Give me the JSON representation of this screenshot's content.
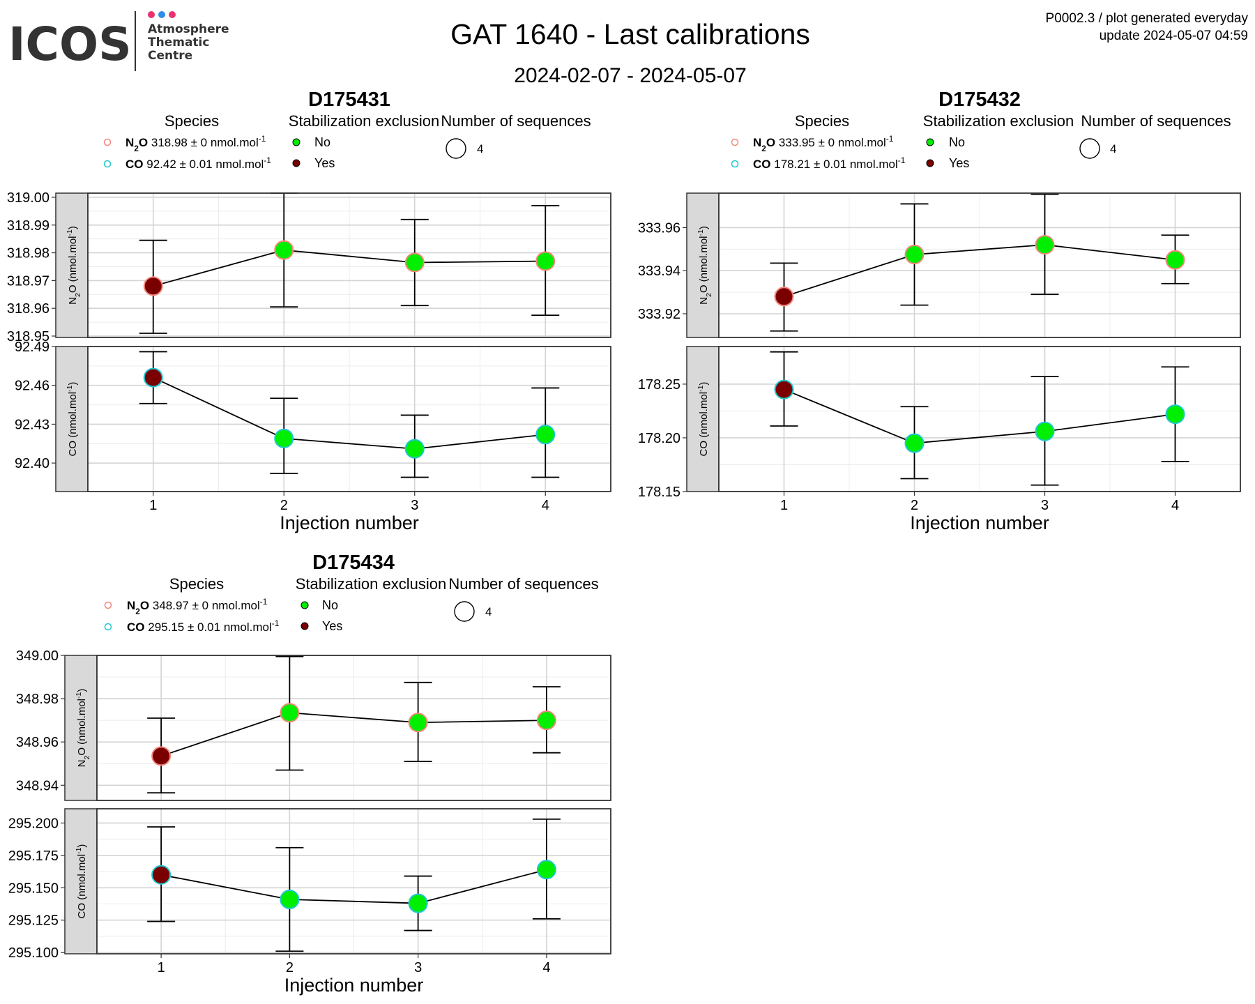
{
  "header": {
    "logo_text": "ICOS",
    "logo_subtitle_lines": [
      "Atmosphere",
      "Thematic",
      "Centre"
    ],
    "logo_dot_colors": [
      "#e8336e",
      "#2f8ee8",
      "#e8336e"
    ],
    "title": "GAT 1640 - Last calibrations",
    "date_range": "2024-02-07 - 2024-05-07",
    "meta_line1": "P0002.3 / plot generated everyday",
    "meta_line2": "update  2024-05-07 04:59"
  },
  "legend_labels": {
    "species_title": "Species",
    "stab_title": "Stabilization exclusion",
    "stab_no": "No",
    "stab_yes": "Yes",
    "nseq_title": "Number of sequences"
  },
  "colors": {
    "no_fill": "#00ee00",
    "yes_fill": "#7a0000",
    "n2o_outline": "#f4877c",
    "co_outline": "#1fc7cf",
    "strip_fill": "#d9d9d9",
    "grid_major": "#d4d4d4",
    "grid_minor": "#ececec"
  },
  "chart_data": [
    {
      "type": "scatter",
      "title": "D175431",
      "xlabel": "Injection number",
      "x": [
        1,
        2,
        3,
        4
      ],
      "legend": {
        "n2o_formula": "N2O",
        "n2o_text": "318.98 ± 0 nmol.mol-1",
        "co_formula": "CO",
        "co_text": "92.42 ± 0.01 nmol.mol-1",
        "nseq": "4"
      },
      "panels": [
        {
          "species": "N2O",
          "strip_label": "N2O (nmol.mol-1)",
          "ylim": [
            318.9495,
            319.0015
          ],
          "yticks": [
            318.95,
            318.96,
            318.97,
            318.98,
            318.99,
            319.0
          ],
          "ytick_labels": [
            "318.95",
            "318.96",
            "318.97",
            "318.98",
            "318.99",
            "319.00"
          ],
          "y": [
            318.968,
            318.981,
            318.9765,
            318.977
          ],
          "err_low": [
            318.951,
            318.9605,
            318.961,
            318.9575
          ],
          "err_high": [
            318.9845,
            319.0015,
            318.992,
            318.997
          ],
          "excluded": [
            true,
            false,
            false,
            false
          ]
        },
        {
          "species": "CO",
          "strip_label": "CO (nmol.mol-1)",
          "ylim": [
            92.378,
            92.49
          ],
          "yticks": [
            92.4,
            92.43,
            92.46,
            92.49
          ],
          "ytick_labels": [
            "92.40",
            "92.43",
            "92.46",
            "92.49"
          ],
          "y": [
            92.466,
            92.419,
            92.411,
            92.422
          ],
          "err_low": [
            92.446,
            92.392,
            92.389,
            92.389
          ],
          "err_high": [
            92.486,
            92.45,
            92.437,
            92.458
          ],
          "excluded": [
            true,
            false,
            false,
            false
          ]
        }
      ]
    },
    {
      "type": "scatter",
      "title": "D175432",
      "xlabel": "Injection number",
      "x": [
        1,
        2,
        3,
        4
      ],
      "legend": {
        "n2o_formula": "N2O",
        "n2o_text": "333.95 ± 0 nmol.mol-1",
        "co_formula": "CO",
        "co_text": "178.21 ± 0.01 nmol.mol-1",
        "nseq": "4"
      },
      "panels": [
        {
          "species": "N2O",
          "strip_label": "N2O (nmol.mol-1)",
          "ylim": [
            333.909,
            333.976
          ],
          "yticks": [
            333.92,
            333.94,
            333.96
          ],
          "ytick_labels": [
            "333.92",
            "333.94",
            "333.96"
          ],
          "y": [
            333.928,
            333.9475,
            333.952,
            333.945
          ],
          "err_low": [
            333.912,
            333.924,
            333.929,
            333.934
          ],
          "err_high": [
            333.9435,
            333.971,
            333.9755,
            333.9565
          ],
          "excluded": [
            true,
            false,
            false,
            false
          ]
        },
        {
          "species": "CO",
          "strip_label": "CO (nmol.mol-1)",
          "ylim": [
            178.15,
            178.285
          ],
          "yticks": [
            178.15,
            178.2,
            178.25
          ],
          "ytick_labels": [
            "178.15",
            "178.20",
            "178.25"
          ],
          "y": [
            178.245,
            178.195,
            178.206,
            178.222
          ],
          "err_low": [
            178.211,
            178.162,
            178.156,
            178.178
          ],
          "err_high": [
            178.28,
            178.229,
            178.257,
            178.266
          ],
          "excluded": [
            true,
            false,
            false,
            false
          ]
        }
      ]
    },
    {
      "type": "scatter",
      "title": "D175434",
      "xlabel": "Injection number",
      "x": [
        1,
        2,
        3,
        4
      ],
      "legend": {
        "n2o_formula": "N2O",
        "n2o_text": "348.97 ± 0 nmol.mol-1",
        "co_formula": "CO",
        "co_text": "295.15 ± 0.01 nmol.mol-1",
        "nseq": "4"
      },
      "panels": [
        {
          "species": "N2O",
          "strip_label": "N2O (nmol.mol-1)",
          "ylim": [
            348.933,
            349.0
          ],
          "yticks": [
            348.94,
            348.96,
            348.98,
            349.0
          ],
          "ytick_labels": [
            "348.94",
            "348.96",
            "348.98",
            "349.00"
          ],
          "y": [
            348.9535,
            348.9735,
            348.969,
            348.97
          ],
          "err_low": [
            348.9365,
            348.947,
            348.951,
            348.955
          ],
          "err_high": [
            348.971,
            348.9995,
            348.9875,
            348.9855
          ],
          "excluded": [
            true,
            false,
            false,
            false
          ]
        },
        {
          "species": "CO",
          "strip_label": "CO (nmol.mol-1)",
          "ylim": [
            295.099,
            295.211
          ],
          "yticks": [
            295.1,
            295.125,
            295.15,
            295.175,
            295.2
          ],
          "ytick_labels": [
            "295.100",
            "295.125",
            "295.150",
            "295.175",
            "295.200"
          ],
          "y": [
            295.16,
            295.141,
            295.138,
            295.164
          ],
          "err_low": [
            295.124,
            295.101,
            295.117,
            295.126
          ],
          "err_high": [
            295.197,
            295.181,
            295.159,
            295.203
          ],
          "excluded": [
            true,
            false,
            false,
            false
          ]
        }
      ]
    }
  ]
}
